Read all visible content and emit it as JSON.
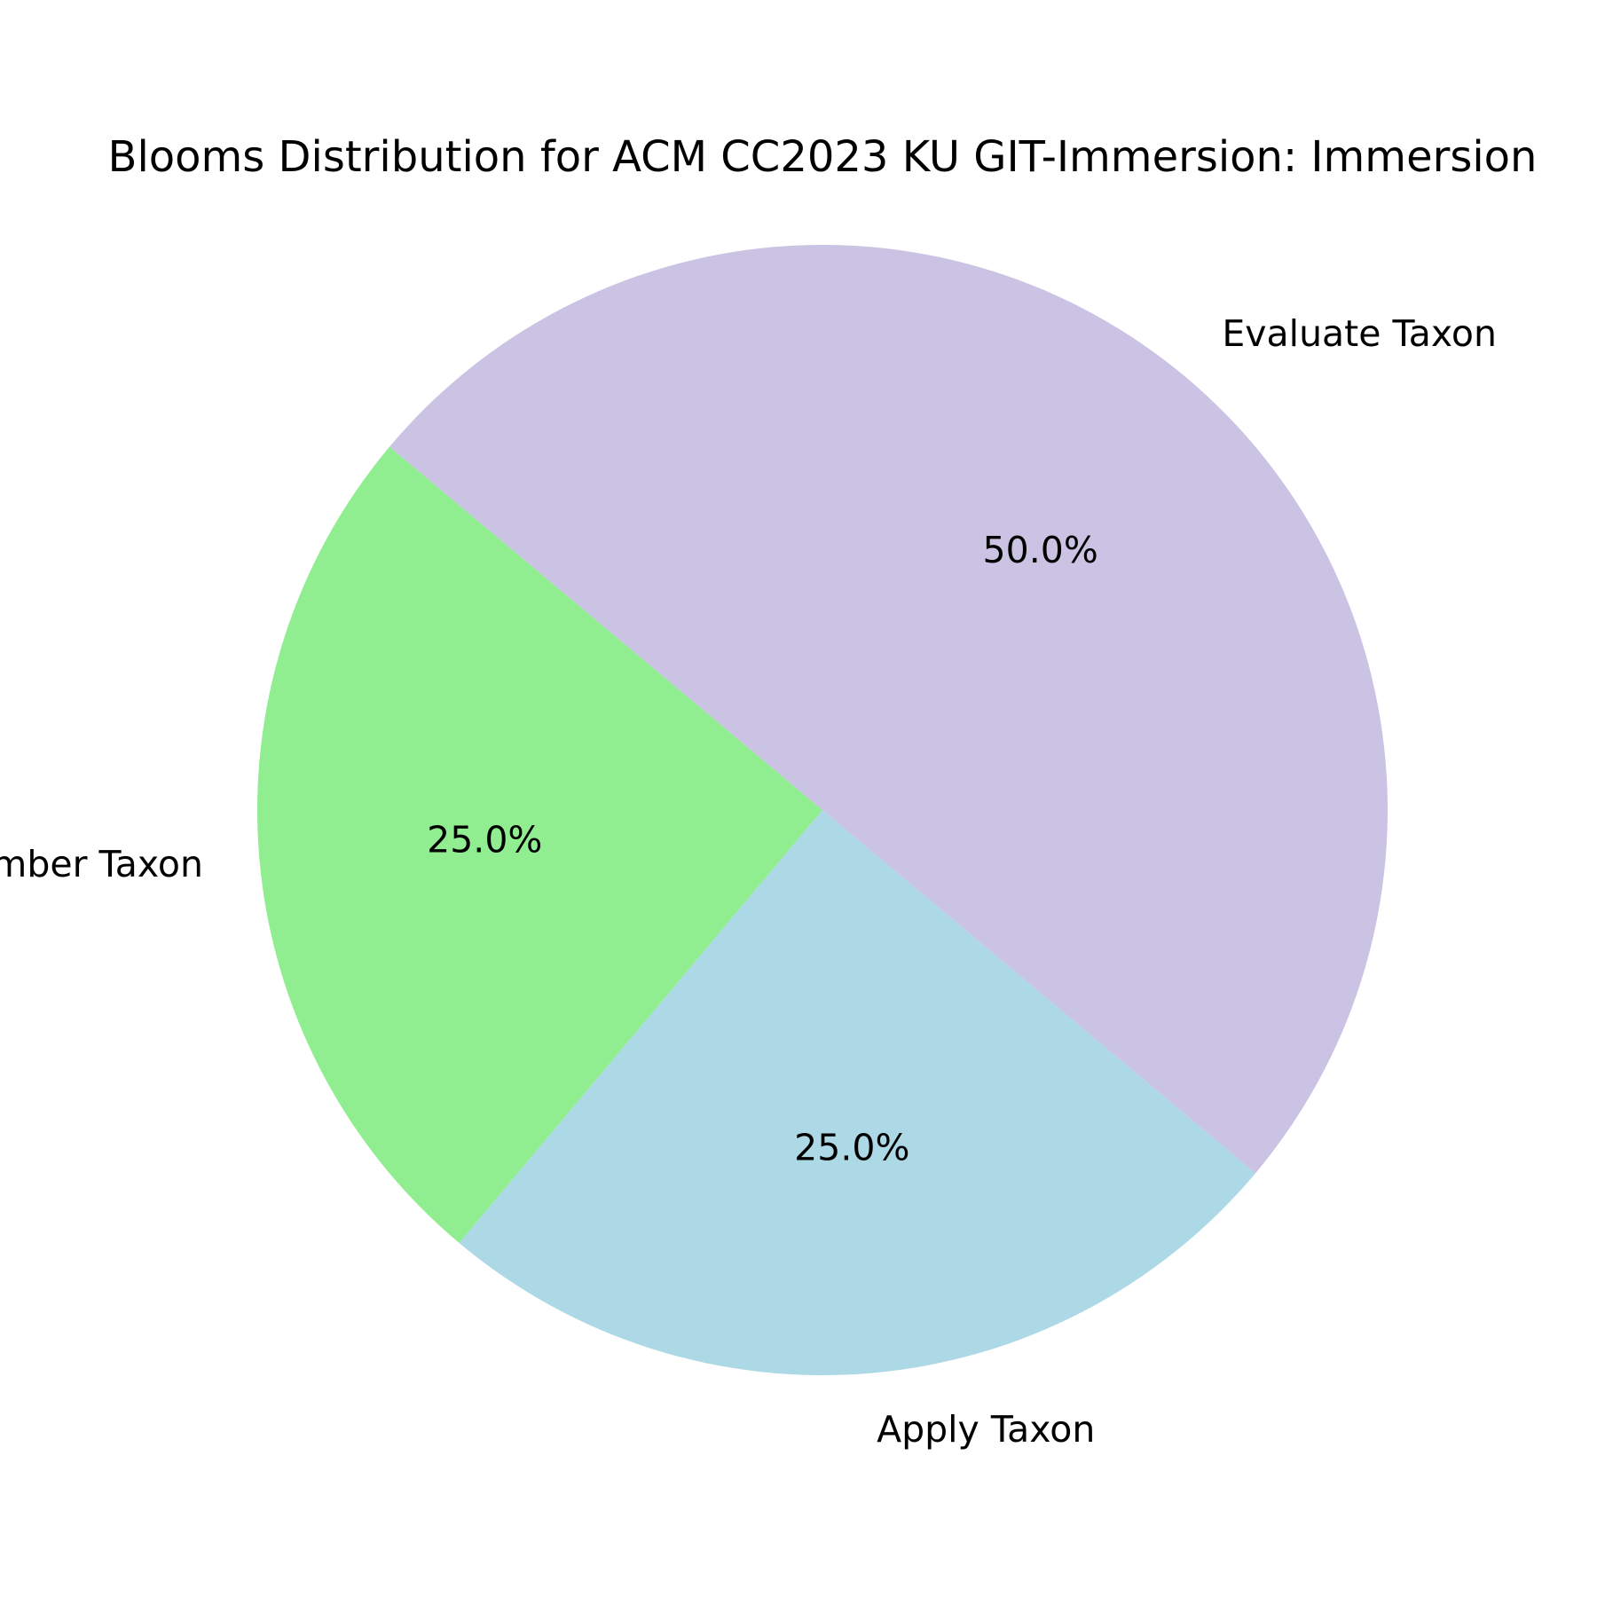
{
  "chart_data": {
    "type": "pie",
    "title": "Blooms Distribution for ACM CC2023 KU GIT-Immersion: Immersion",
    "slices": [
      {
        "label": "Remember Taxon",
        "value": 25.0,
        "pct_label": "25.0%",
        "color": "#90ee90"
      },
      {
        "label": "Apply Taxon",
        "value": 25.0,
        "pct_label": "25.0%",
        "color": "#add8e6"
      },
      {
        "label": "Evaluate Taxon",
        "value": 50.0,
        "pct_label": "50.0%",
        "color": "#cbc3e3"
      }
    ],
    "start_angle_deg": 140,
    "counterclock": true
  }
}
